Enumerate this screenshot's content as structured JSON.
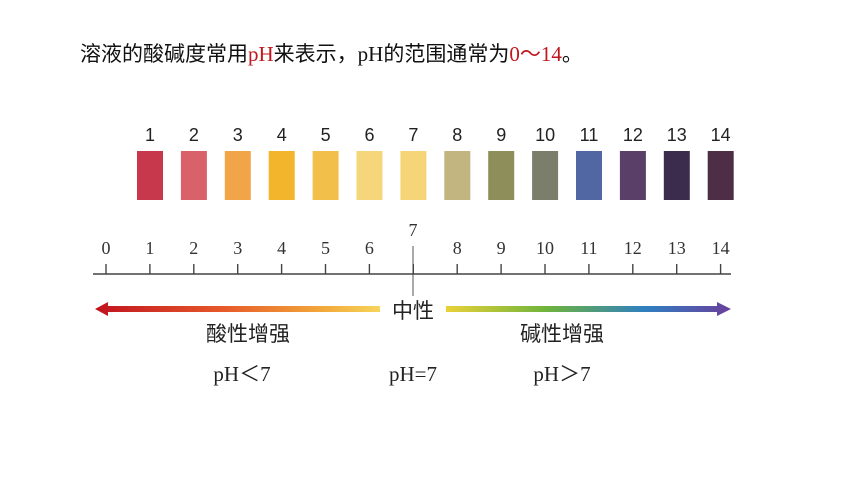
{
  "intro": {
    "part1": "溶液的酸碱度常用",
    "ph": "pH",
    "part2": "来表示，",
    "ph2": "pH",
    "part3": "的范围通常为",
    "range": "0～14",
    "part4": "。"
  },
  "strip": {
    "numbers": [
      "1",
      "2",
      "3",
      "4",
      "5",
      "6",
      "7",
      "8",
      "9",
      "10",
      "11",
      "12",
      "13",
      "14"
    ],
    "colors": [
      "#c8384d",
      "#d9626a",
      "#f1a448",
      "#f2b52b",
      "#f2c04a",
      "#f6d67a",
      "#f6d579",
      "#c2b57f",
      "#8e8e5a",
      "#7a7e6b",
      "#5067a3",
      "#5a4068",
      "#3b2c4e",
      "#4e2d47"
    ]
  },
  "scale": {
    "ticks": [
      "0",
      "1",
      "2",
      "3",
      "4",
      "5",
      "6",
      "7",
      "8",
      "9",
      "10",
      "11",
      "12",
      "13",
      "14"
    ],
    "neutral_value": "7"
  },
  "labels": {
    "neutral": "中性",
    "acidic": "酸性增强",
    "basic": "碱性增强",
    "ph_lt": "pH＜7",
    "ph_eq": "pH=7",
    "ph_gt": "pH＞7"
  }
}
